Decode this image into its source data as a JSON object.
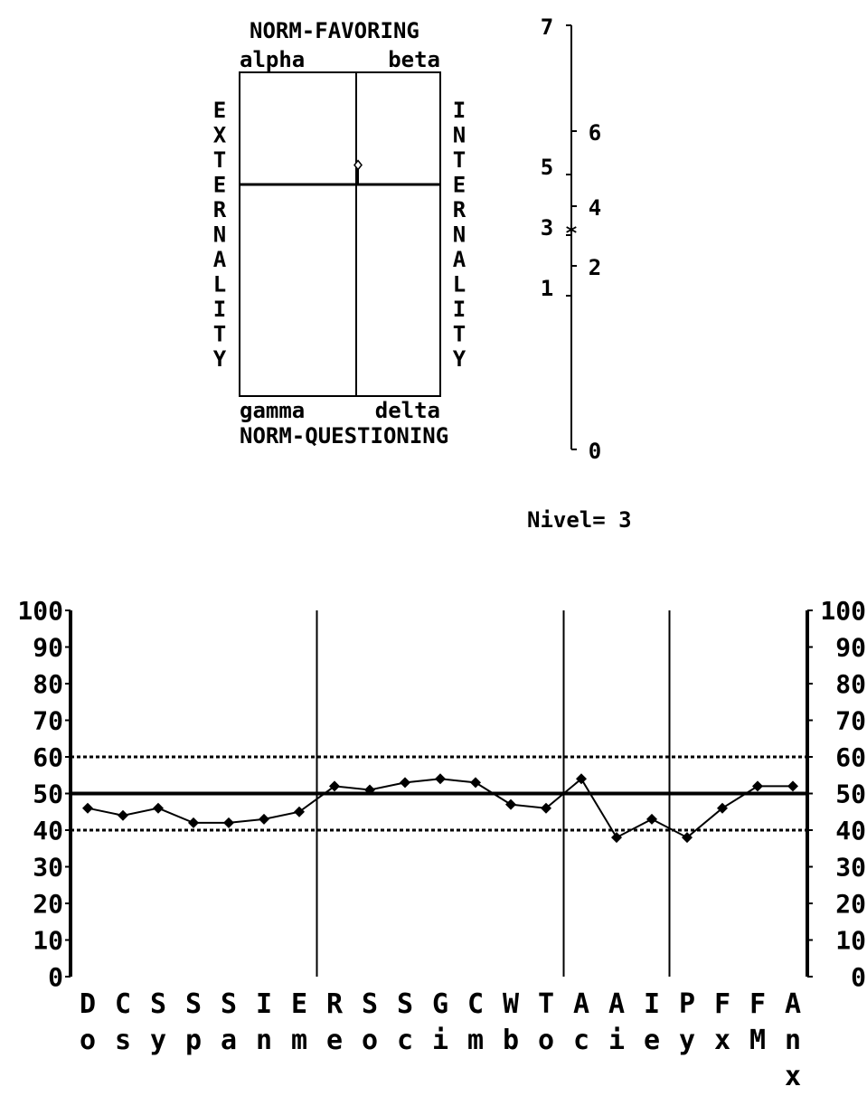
{
  "quadrant": {
    "top_title": "NORM-FAVORING",
    "bottom_title": "NORM-QUESTIONING",
    "alpha": "alpha",
    "beta": "beta",
    "gamma": "gamma",
    "delta": "delta",
    "left_axis": "EXTERNALITY",
    "right_axis": "INTERNALITY",
    "point": {
      "x_fraction": 0.0,
      "y_fraction": -0.1
    }
  },
  "level_scale": {
    "left_labels": [
      "7",
      "5",
      "3",
      "1"
    ],
    "right_labels": [
      "6",
      "4",
      "2",
      "0"
    ],
    "marker": "*",
    "marker_level": 3
  },
  "nivel_text": "Nivel= 3",
  "chart_data": {
    "type": "line",
    "ylim": [
      0,
      100
    ],
    "yticks": [
      "100",
      "90",
      "80",
      "70",
      "60",
      "50",
      "40",
      "30",
      "20",
      "10",
      "0"
    ],
    "reference_lines": {
      "mean": 50,
      "upper": 60,
      "lower": 40
    },
    "categories_top": [
      "D",
      "C",
      "S",
      "S",
      "S",
      "I",
      "E",
      "R",
      "S",
      "S",
      "G",
      "C",
      "W",
      "T",
      "A",
      "A",
      "I",
      "P",
      "F",
      "F",
      "A"
    ],
    "categories_bottom": [
      "o",
      "s",
      "y",
      "p",
      "a",
      "n",
      "m",
      "e",
      "o",
      "c",
      "i",
      "m",
      "b",
      "o",
      "c",
      "i",
      "e",
      "y",
      "x",
      "M",
      "n"
    ],
    "categories_extra": [
      "",
      "",
      "",
      "",
      "",
      "",
      "",
      "",
      "",
      "",
      "",
      "",
      "",
      "",
      "",
      "",
      "",
      "",
      "",
      "",
      "x"
    ],
    "group_dividers_after_index": [
      6,
      13,
      16
    ],
    "values": [
      46,
      44,
      46,
      42,
      42,
      43,
      45,
      52,
      51,
      53,
      54,
      53,
      47,
      46,
      54,
      38,
      43,
      38,
      46,
      52,
      52
    ]
  }
}
